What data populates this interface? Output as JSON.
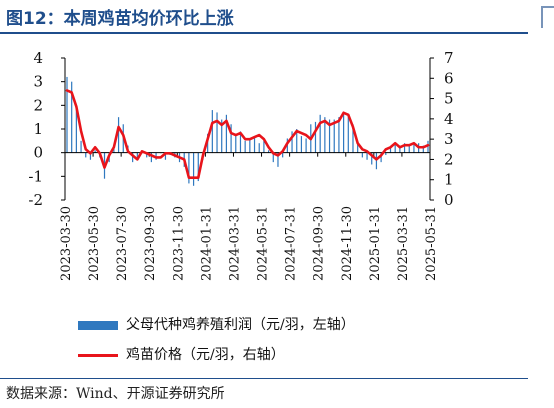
{
  "title": "图12：本周鸡苗均价环比上涨",
  "source": "数据来源：Wind、开源证券研究所",
  "chart_data": {
    "type": "bar+line",
    "left_axis": {
      "ylim": [
        -2,
        4
      ],
      "ticks": [
        "4",
        "3",
        "2",
        "1",
        "0",
        "-1",
        "-2"
      ]
    },
    "right_axis": {
      "ylim": [
        0,
        7
      ],
      "ticks": [
        "7",
        "6",
        "5",
        "4",
        "3",
        "2",
        "1",
        "0"
      ]
    },
    "x_tick_labels": [
      "2023-03-30",
      "2023-05-30",
      "2023-07-30",
      "2023-09-30",
      "2023-11-30",
      "2024-01-31",
      "2024-03-31",
      "2024-05-31",
      "2024-07-31",
      "2024-09-30",
      "2024-11-30",
      "2025-01-31",
      "2025-03-31",
      "2025-05-31"
    ],
    "grid": false,
    "legend_position": "bottom",
    "series": [
      {
        "name": "父母代种鸡养殖利润（元/羽，左轴）",
        "type": "bar",
        "axis": "left",
        "color": "#2f78bf",
        "values": [
          3.2,
          3.0,
          2.0,
          0.5,
          -0.2,
          -0.3,
          0.1,
          -0.2,
          -1.1,
          -0.4,
          0.2,
          1.5,
          1.2,
          0.3,
          -0.4,
          -0.2,
          0.0,
          -0.2,
          -0.4,
          -0.3,
          0.0,
          -0.3,
          -0.1,
          -0.2,
          -0.4,
          -0.6,
          -1.3,
          -1.4,
          -1.2,
          -0.3,
          0.8,
          1.8,
          1.7,
          1.4,
          1.6,
          1.2,
          0.8,
          0.9,
          0.5,
          0.6,
          0.7,
          0.4,
          0.5,
          0.1,
          -0.4,
          -0.6,
          -0.2,
          0.6,
          0.9,
          1.0,
          0.7,
          0.6,
          1.2,
          1.3,
          1.6,
          1.5,
          1.4,
          1.4,
          1.5,
          1.7,
          1.6,
          1.2,
          0.4,
          -0.2,
          -0.3,
          -0.5,
          -0.7,
          -0.4,
          -0.1,
          0.2,
          0.4,
          0.2,
          0.4,
          0.3,
          0.4,
          0.4,
          0.3,
          0.5
        ]
      },
      {
        "name": "鸡苗价格（元/羽，右轴）",
        "type": "line",
        "axis": "right",
        "color": "#e8141b",
        "values": [
          5.4,
          5.3,
          4.6,
          3.4,
          2.5,
          2.3,
          2.6,
          2.3,
          1.6,
          2.2,
          2.6,
          3.6,
          3.2,
          2.4,
          2.2,
          2.0,
          2.4,
          2.3,
          2.2,
          2.1,
          2.1,
          2.3,
          2.3,
          2.2,
          2.1,
          2.0,
          1.1,
          1.1,
          1.1,
          2.2,
          3.0,
          3.8,
          3.9,
          3.7,
          3.9,
          3.3,
          3.2,
          3.3,
          3.0,
          3.0,
          3.1,
          3.2,
          3.0,
          2.6,
          2.3,
          2.2,
          2.4,
          2.8,
          3.1,
          3.4,
          3.3,
          3.2,
          3.0,
          3.4,
          3.8,
          3.9,
          3.7,
          3.8,
          3.9,
          4.3,
          4.2,
          3.6,
          2.8,
          2.5,
          2.4,
          2.2,
          2.0,
          2.2,
          2.5,
          2.6,
          2.8,
          2.6,
          2.7,
          2.7,
          2.8,
          2.6,
          2.6,
          2.7
        ]
      }
    ]
  }
}
